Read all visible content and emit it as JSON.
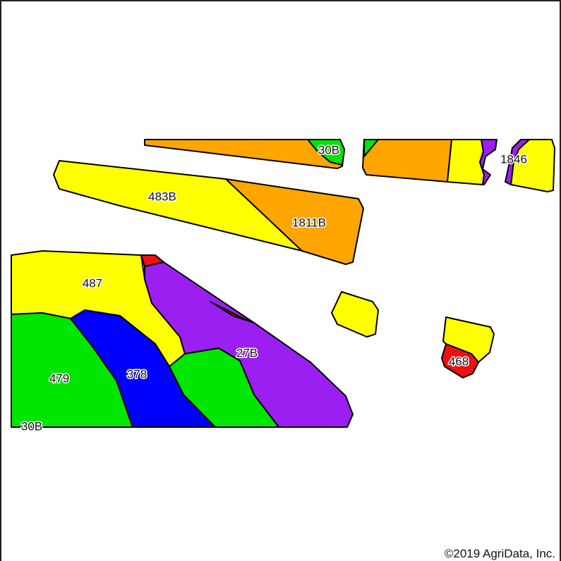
{
  "colors": {
    "yellow": "#ffff00",
    "orange": "#ffa500",
    "green": "#00e600",
    "blue": "#0000ff",
    "purple": "#9b1ff0",
    "red": "#ee1111",
    "outline": "#000000"
  },
  "map_units": [
    {
      "symbol": "30B",
      "color": "green"
    },
    {
      "symbol": "1846",
      "color": "purple"
    },
    {
      "symbol": "483B",
      "color": "yellow"
    },
    {
      "symbol": "1811B",
      "color": "orange"
    },
    {
      "symbol": "487",
      "color": "yellow"
    },
    {
      "symbol": "27B",
      "color": "purple"
    },
    {
      "symbol": "479",
      "color": "green"
    },
    {
      "symbol": "378",
      "color": "blue"
    },
    {
      "symbol": "30B",
      "color": "green"
    },
    {
      "symbol": "468",
      "color": "red"
    }
  ],
  "copyright": "©2019 AgriData, Inc."
}
